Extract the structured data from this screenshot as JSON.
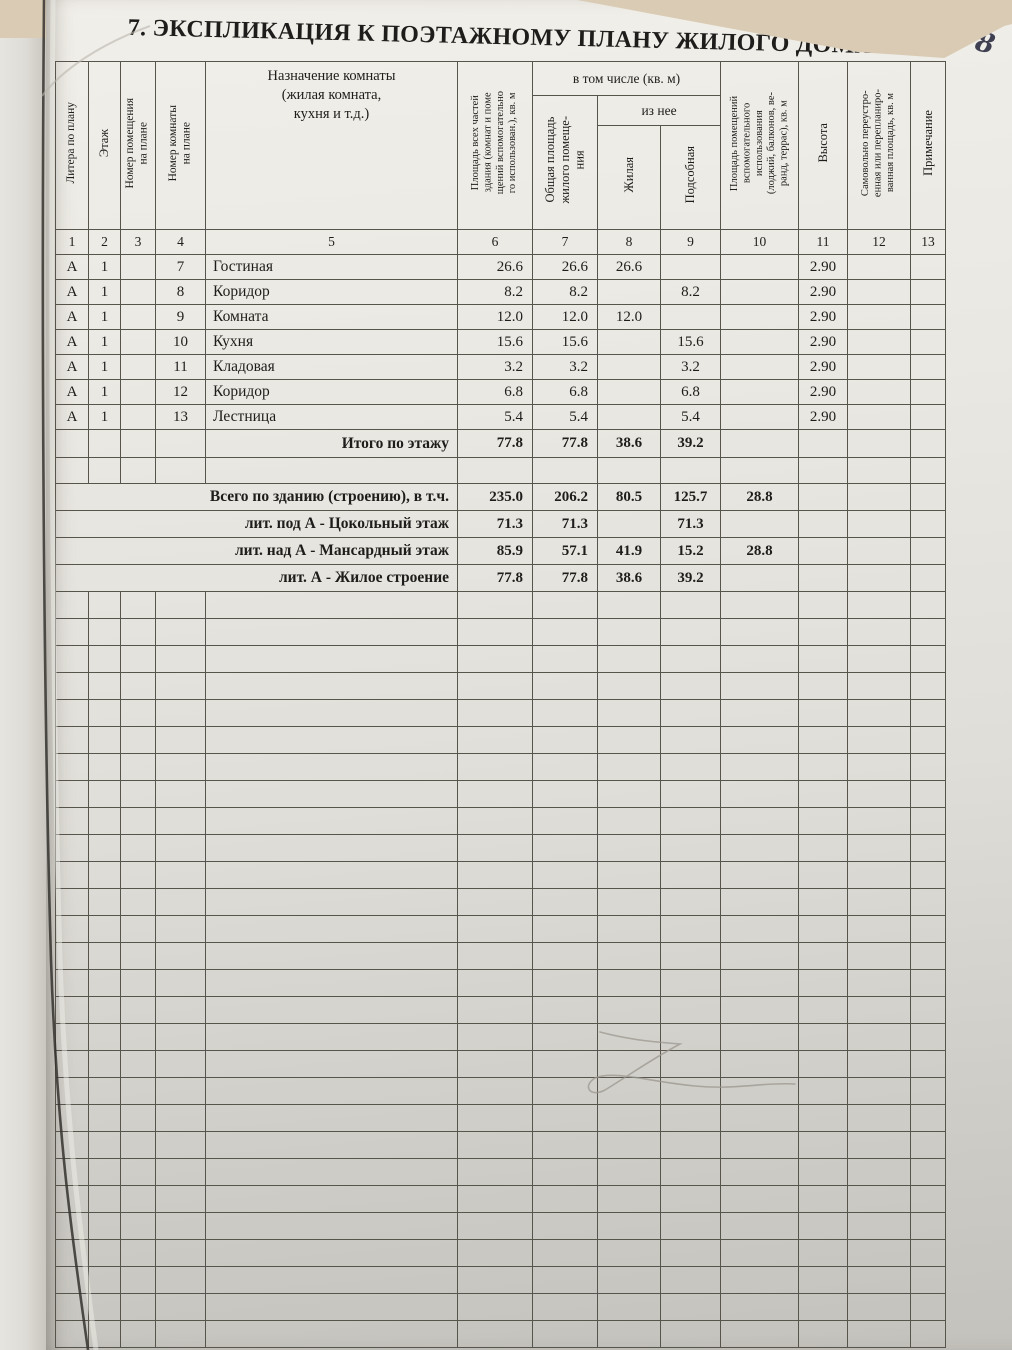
{
  "page": {
    "title": "7. ЭКСПЛИКАЦИЯ К ПОЭТАЖНОМУ ПЛАНУ ЖИЛОГО ДОМА",
    "handwritten_page_number": "8"
  },
  "table": {
    "group_headers": {
      "including": "в том числе (кв. м)",
      "of_which": "из нее"
    },
    "columns": [
      {
        "num": "1",
        "label": "Литера по плану"
      },
      {
        "num": "2",
        "label": "Этаж"
      },
      {
        "num": "3",
        "label": "Номер помещения\nна плане"
      },
      {
        "num": "4",
        "label": "Номер комнаты\nна плане"
      },
      {
        "num": "5",
        "label": "Назначение комнаты\n(жилая комната,\nкухня и т.д.)"
      },
      {
        "num": "6",
        "label": "Площадь всех частей\nздания (комнат и поме\nщений вспомогательно\nго использован.), кв. м"
      },
      {
        "num": "7",
        "label": "Общая площадь\nжилого помеще-\nния"
      },
      {
        "num": "8",
        "label": "Жилая"
      },
      {
        "num": "9",
        "label": "Подсобная"
      },
      {
        "num": "10",
        "label": "Площадь помещений\nвспомогательного\nиспользования\n(лоджий, балконов, ве-\nранд, террас), кв. м"
      },
      {
        "num": "11",
        "label": "Высота"
      },
      {
        "num": "12",
        "label": "Самовольно переустро-\nенная или перепланиро-\nванная площадь, кв. м"
      },
      {
        "num": "13",
        "label": "Примечание"
      }
    ],
    "rows": [
      {
        "litera": "А",
        "floor": "1",
        "room": "7",
        "name": "Гостиная",
        "total": "26.6",
        "common": "26.6",
        "living": "26.6",
        "aux": "",
        "height": "2.90"
      },
      {
        "litera": "А",
        "floor": "1",
        "room": "8",
        "name": "Коридор",
        "total": "8.2",
        "common": "8.2",
        "living": "",
        "aux": "8.2",
        "height": "2.90"
      },
      {
        "litera": "А",
        "floor": "1",
        "room": "9",
        "name": "Комната",
        "total": "12.0",
        "common": "12.0",
        "living": "12.0",
        "aux": "",
        "height": "2.90"
      },
      {
        "litera": "А",
        "floor": "1",
        "room": "10",
        "name": "Кухня",
        "total": "15.6",
        "common": "15.6",
        "living": "",
        "aux": "15.6",
        "height": "2.90"
      },
      {
        "litera": "А",
        "floor": "1",
        "room": "11",
        "name": "Кладовая",
        "total": "3.2",
        "common": "3.2",
        "living": "",
        "aux": "3.2",
        "height": "2.90"
      },
      {
        "litera": "А",
        "floor": "1",
        "room": "12",
        "name": "Коридор",
        "total": "6.8",
        "common": "6.8",
        "living": "",
        "aux": "6.8",
        "height": "2.90"
      },
      {
        "litera": "А",
        "floor": "1",
        "room": "13",
        "name": "Лестница",
        "total": "5.4",
        "common": "5.4",
        "living": "",
        "aux": "5.4",
        "height": "2.90"
      }
    ],
    "floor_total": {
      "label": "Итого по этажу",
      "total": "77.8",
      "common": "77.8",
      "living": "38.6",
      "aux": "39.2"
    },
    "summary_rows": [
      {
        "label": "Всего по зданию (строению), в т.ч.",
        "total": "235.0",
        "common": "206.2",
        "living": "80.5",
        "aux": "125.7",
        "aux_use": "28.8"
      },
      {
        "label": "лит. под А - Цокольный этаж",
        "total": "71.3",
        "common": "71.3",
        "living": "",
        "aux": "71.3",
        "aux_use": ""
      },
      {
        "label": "лит. над А - Мансардный этаж",
        "total": "85.9",
        "common": "57.1",
        "living": "41.9",
        "aux": "15.2",
        "aux_use": "28.8"
      },
      {
        "label": "лит. А - Жилое строение",
        "total": "77.8",
        "common": "77.8",
        "living": "38.6",
        "aux": "39.2",
        "aux_use": ""
      }
    ]
  }
}
